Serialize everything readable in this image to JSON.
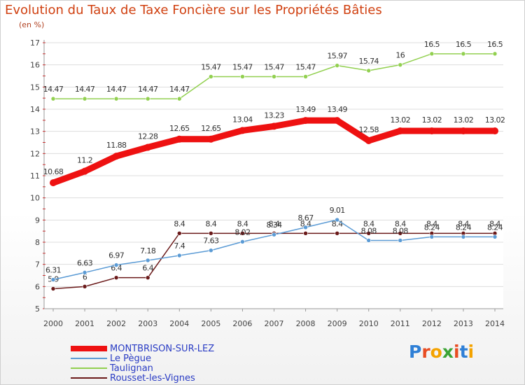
{
  "title": "Evolution du Taux de Taxe Foncière sur les Propriétés Bâties",
  "unit_label": "(en %)",
  "logo_text": "Proxiti",
  "chart_data": {
    "type": "line",
    "title": "Evolution du Taux de Taxe Foncière sur les Propriétés Bâties",
    "ylabel": "(en %)",
    "xlabel": "",
    "ylim": [
      5,
      17
    ],
    "yticks": [
      "5",
      "6",
      "7",
      "8",
      "9",
      "10",
      "11",
      "12",
      "13",
      "14",
      "15",
      "16",
      "17"
    ],
    "x": [
      "2000",
      "2001",
      "2002",
      "2003",
      "2004",
      "2005",
      "2006",
      "2007",
      "2008",
      "2009",
      "2010",
      "2011",
      "2012",
      "2013",
      "2014"
    ],
    "series": [
      {
        "name": "Rousset-les-Vignes",
        "color": "#6b1a1a",
        "values": [
          5.9,
          6,
          6.4,
          6.4,
          8.4,
          8.4,
          8.4,
          8.4,
          8.4,
          8.4,
          8.4,
          8.4,
          8.4,
          8.4,
          8.4
        ],
        "labels": [
          "5.9",
          "6",
          "6.4",
          "6.4",
          "8.4",
          "8.4",
          "8.4",
          "8.4",
          "8.4",
          "8.4",
          "8.4",
          "8.4",
          "8.4",
          "8.4",
          "8.4"
        ]
      },
      {
        "name": "Le Pègue",
        "color": "#5b9bd5",
        "values": [
          6.31,
          6.63,
          6.97,
          7.18,
          7.4,
          7.63,
          8.02,
          8.34,
          8.67,
          9.01,
          8.08,
          8.08,
          8.24,
          8.24,
          8.24
        ],
        "labels": [
          "6.31",
          "6.63",
          "6.97",
          "7.18",
          "7.4",
          "7.63",
          "8.02",
          "8.34",
          "8.67",
          "9.01",
          "8.08",
          "8.08",
          "8.24",
          "8.24",
          "8.24"
        ]
      },
      {
        "name": "Taulignan",
        "color": "#92d050",
        "values": [
          14.47,
          14.47,
          14.47,
          14.47,
          14.47,
          15.47,
          15.47,
          15.47,
          15.47,
          15.97,
          15.74,
          16,
          16.5,
          16.5,
          16.5
        ],
        "labels": [
          "14.47",
          "14.47",
          "14.47",
          "14.47",
          "14.47",
          "15.47",
          "15.47",
          "15.47",
          "15.47",
          "15.97",
          "15.74",
          "16",
          "16.5",
          "16.5",
          "16.5"
        ]
      },
      {
        "name": "MONTBRISON-SUR-LEZ",
        "color": "#ee1111",
        "values": [
          10.68,
          11.2,
          11.88,
          12.28,
          12.65,
          12.65,
          13.04,
          13.23,
          13.49,
          13.49,
          12.58,
          13.02,
          13.02,
          13.02,
          13.02
        ],
        "labels": [
          "10.68",
          "11.2",
          "11.88",
          "12.28",
          "12.65",
          "12.65",
          "13.04",
          "13.23",
          "13.49",
          "13.49",
          "12.58",
          "13.02",
          "13.02",
          "13.02",
          "13.02"
        ]
      }
    ],
    "legend": [
      {
        "name": "MONTBRISON-SUR-LEZ",
        "color": "#ee1111"
      },
      {
        "name": "Le Pègue",
        "color": "#5b9bd5"
      },
      {
        "name": "Taulignan",
        "color": "#92d050"
      },
      {
        "name": "Rousset-les-Vignes",
        "color": "#6b1a1a"
      }
    ]
  }
}
